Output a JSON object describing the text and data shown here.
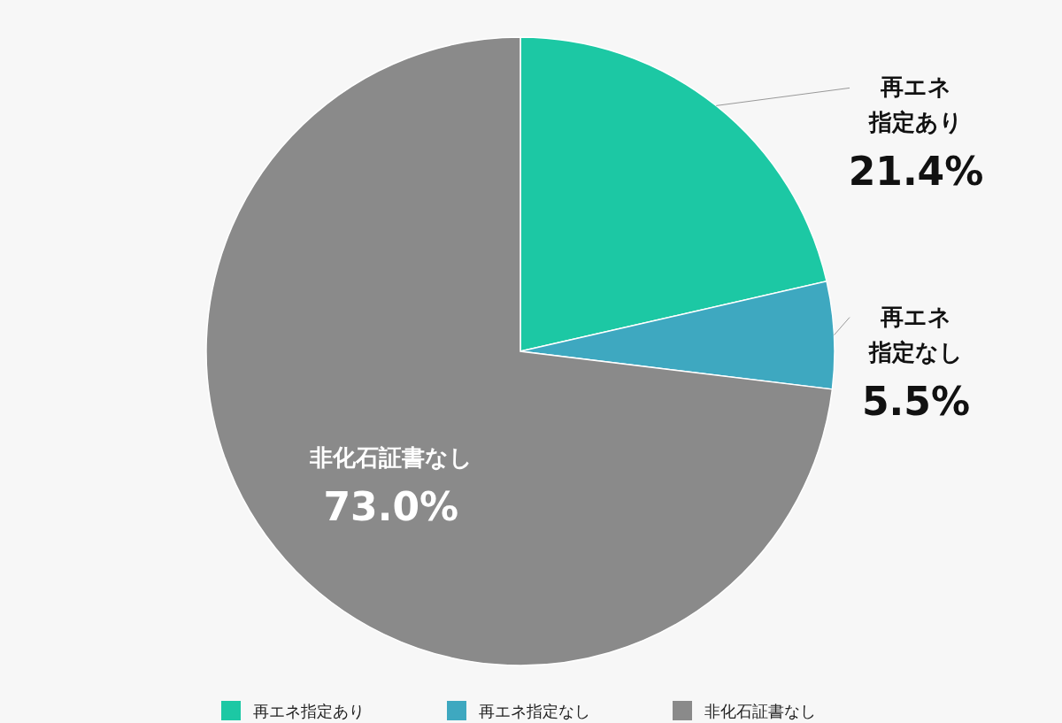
{
  "chart_data": {
    "type": "pie",
    "categories": [
      "再エネ指定あり",
      "再エネ指定なし",
      "非化石証書なし"
    ],
    "values": [
      21.4,
      5.5,
      73.0
    ],
    "colors": [
      "#1cc8a4",
      "#3ea8c0",
      "#8a8a8a"
    ],
    "value_labels": [
      "21.4%",
      "5.5%",
      "73.0%"
    ],
    "legend": "bottom",
    "annotations": [
      "再エネ指定あり",
      "再エネ指定なし"
    ]
  }
}
